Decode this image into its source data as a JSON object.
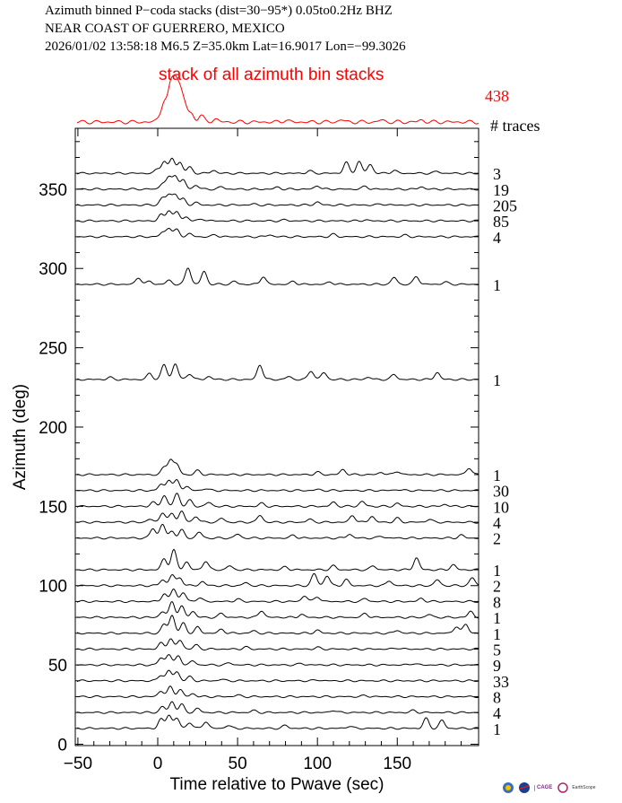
{
  "header": {
    "line1": "Azimuth binned P−coda stacks (dist=30−95*)  0.05to0.2Hz  BHZ",
    "line2": "NEAR COAST OF GUERRERO, MEXICO",
    "line3": "2026/01/02  13:58:18  M6.5  Z=35.0km Lat=16.9017 Lon=−99.3026"
  },
  "summary": {
    "label": "stack of all azimuth bin stacks",
    "count": "438",
    "traces_header": "# traces",
    "color": "#ff0000"
  },
  "chart_data": {
    "type": "line",
    "xlabel": "Time relative to Pwave (sec)",
    "ylabel": "Azimuth (deg)",
    "xlim": [
      -50,
      200
    ],
    "ylim": [
      0,
      390
    ],
    "xticks": [
      -50,
      0,
      50,
      100,
      150
    ],
    "xtick_labels": [
      "−50",
      "0",
      "50",
      "100",
      "150"
    ],
    "yticks": [
      0,
      50,
      100,
      150,
      200,
      250,
      300,
      350
    ],
    "yticks_minor_step": 10,
    "grid": false,
    "summary_trace": {
      "name": "stack of all azimuth bin stacks",
      "count": 438,
      "peaks": [
        [
          1,
          0.1
        ],
        [
          4,
          0.5
        ],
        [
          8,
          0.85
        ],
        [
          11,
          0.95
        ],
        [
          14,
          0.7
        ],
        [
          17,
          0.4
        ],
        [
          21,
          0.2
        ],
        [
          27,
          0.18
        ],
        [
          36,
          0.08
        ],
        [
          80,
          0.05
        ],
        [
          115,
          0.06
        ],
        [
          140,
          0.05
        ],
        [
          165,
          0.05
        ]
      ]
    },
    "series": [
      {
        "azimuth": 360,
        "count": 3,
        "peaks": [
          [
            0,
            0.2
          ],
          [
            4,
            0.6
          ],
          [
            9,
            0.75
          ],
          [
            14,
            0.55
          ],
          [
            20,
            0.3
          ],
          [
            35,
            0.15
          ],
          [
            95,
            0.12
          ],
          [
            118,
            0.55
          ],
          [
            126,
            0.6
          ],
          [
            133,
            0.45
          ],
          [
            148,
            0.15
          ],
          [
            175,
            0.1
          ]
        ]
      },
      {
        "azimuth": 350,
        "count": 19,
        "peaks": [
          [
            3,
            0.3
          ],
          [
            7,
            0.55
          ],
          [
            11,
            0.7
          ],
          [
            16,
            0.45
          ],
          [
            24,
            0.2
          ],
          [
            40,
            0.12
          ],
          [
            75,
            0.1
          ],
          [
            100,
            0.18
          ],
          [
            130,
            0.15
          ],
          [
            165,
            0.12
          ]
        ]
      },
      {
        "azimuth": 340,
        "count": 205,
        "peaks": [
          [
            3,
            0.35
          ],
          [
            7,
            0.5
          ],
          [
            11,
            0.55
          ],
          [
            16,
            0.3
          ],
          [
            24,
            0.12
          ],
          [
            60,
            0.05
          ],
          [
            100,
            0.15
          ],
          [
            140,
            0.06
          ]
        ]
      },
      {
        "azimuth": 330,
        "count": 85,
        "peaks": [
          [
            2,
            0.3
          ],
          [
            7,
            0.55
          ],
          [
            12,
            0.45
          ],
          [
            18,
            0.2
          ],
          [
            28,
            0.1
          ],
          [
            80,
            0.05
          ],
          [
            130,
            0.05
          ]
        ]
      },
      {
        "azimuth": 320,
        "count": 4,
        "peaks": [
          [
            3,
            0.2
          ],
          [
            7,
            0.45
          ],
          [
            12,
            0.35
          ],
          [
            20,
            0.15
          ],
          [
            36,
            0.1
          ],
          [
            70,
            0.1
          ],
          [
            110,
            0.12
          ],
          [
            155,
            0.08
          ]
        ]
      },
      {
        "azimuth": 290,
        "count": 1,
        "peaks": [
          [
            -12,
            0.35
          ],
          [
            -5,
            0.15
          ],
          [
            7,
            0.2
          ],
          [
            19,
            0.85
          ],
          [
            29,
            0.65
          ],
          [
            48,
            0.15
          ],
          [
            66,
            0.4
          ],
          [
            85,
            0.15
          ],
          [
            108,
            0.12
          ],
          [
            148,
            0.35
          ],
          [
            162,
            0.4
          ],
          [
            180,
            0.12
          ]
        ]
      },
      {
        "azimuth": 230,
        "count": 1,
        "peaks": [
          [
            -30,
            0.1
          ],
          [
            -5,
            0.3
          ],
          [
            4,
            0.75
          ],
          [
            11,
            0.8
          ],
          [
            20,
            0.3
          ],
          [
            32,
            0.15
          ],
          [
            64,
            0.75
          ],
          [
            82,
            0.15
          ],
          [
            96,
            0.45
          ],
          [
            104,
            0.35
          ],
          [
            132,
            0.12
          ],
          [
            148,
            0.25
          ],
          [
            175,
            0.35
          ]
        ]
      },
      {
        "azimuth": 170,
        "count": 1,
        "peaks": [
          [
            4,
            0.35
          ],
          [
            8,
            0.75
          ],
          [
            12,
            0.5
          ],
          [
            25,
            0.2
          ],
          [
            100,
            0.12
          ],
          [
            116,
            0.25
          ],
          [
            140,
            0.12
          ],
          [
            150,
            0.18
          ],
          [
            195,
            0.35
          ]
        ]
      },
      {
        "azimuth": 160,
        "count": 30,
        "peaks": [
          [
            2,
            0.3
          ],
          [
            7,
            0.55
          ],
          [
            12,
            0.5
          ],
          [
            18,
            0.2
          ],
          [
            30,
            0.1
          ],
          [
            100,
            0.05
          ],
          [
            150,
            0.05
          ]
        ]
      },
      {
        "azimuth": 150,
        "count": 10,
        "peaks": [
          [
            -3,
            0.2
          ],
          [
            4,
            0.55
          ],
          [
            12,
            0.65
          ],
          [
            20,
            0.3
          ],
          [
            32,
            0.2
          ],
          [
            65,
            0.15
          ],
          [
            110,
            0.2
          ],
          [
            128,
            0.25
          ],
          [
            150,
            0.15
          ],
          [
            180,
            0.1
          ]
        ]
      },
      {
        "azimuth": 140,
        "count": 4,
        "peaks": [
          [
            -5,
            0.15
          ],
          [
            3,
            0.5
          ],
          [
            9,
            0.45
          ],
          [
            15,
            0.55
          ],
          [
            24,
            0.3
          ],
          [
            40,
            0.2
          ],
          [
            64,
            0.35
          ],
          [
            95,
            0.15
          ],
          [
            122,
            0.35
          ],
          [
            134,
            0.3
          ],
          [
            150,
            0.2
          ],
          [
            170,
            0.15
          ]
        ]
      },
      {
        "azimuth": 130,
        "count": 2,
        "peaks": [
          [
            -3,
            0.5
          ],
          [
            3,
            0.7
          ],
          [
            9,
            0.35
          ],
          [
            15,
            0.4
          ],
          [
            26,
            0.3
          ],
          [
            50,
            0.2
          ],
          [
            85,
            0.15
          ],
          [
            120,
            0.2
          ],
          [
            140,
            0.1
          ],
          [
            190,
            0.15
          ]
        ]
      },
      {
        "azimuth": 110,
        "count": 1,
        "peaks": [
          [
            4,
            0.55
          ],
          [
            10,
            1.0
          ],
          [
            18,
            0.4
          ],
          [
            30,
            0.45
          ],
          [
            45,
            0.2
          ],
          [
            80,
            0.15
          ],
          [
            110,
            0.2
          ],
          [
            135,
            0.2
          ],
          [
            162,
            0.6
          ],
          [
            185,
            0.25
          ]
        ]
      },
      {
        "azimuth": 100,
        "count": 2,
        "peaks": [
          [
            3,
            0.3
          ],
          [
            9,
            0.55
          ],
          [
            14,
            0.4
          ],
          [
            28,
            0.2
          ],
          [
            55,
            0.15
          ],
          [
            98,
            0.6
          ],
          [
            106,
            0.5
          ],
          [
            118,
            0.3
          ],
          [
            145,
            0.25
          ],
          [
            175,
            0.3
          ],
          [
            197,
            0.4
          ]
        ]
      },
      {
        "azimuth": 90,
        "count": 8,
        "peaks": [
          [
            4,
            0.4
          ],
          [
            10,
            0.65
          ],
          [
            16,
            0.45
          ],
          [
            26,
            0.2
          ],
          [
            50,
            0.12
          ],
          [
            92,
            0.3
          ],
          [
            100,
            0.25
          ],
          [
            130,
            0.15
          ],
          [
            165,
            0.15
          ]
        ]
      },
      {
        "azimuth": 80,
        "count": 1,
        "peaks": [
          [
            3,
            0.3
          ],
          [
            9,
            0.8
          ],
          [
            15,
            0.55
          ],
          [
            22,
            0.3
          ],
          [
            40,
            0.2
          ],
          [
            65,
            0.35
          ],
          [
            90,
            0.15
          ],
          [
            130,
            0.2
          ],
          [
            170,
            0.15
          ],
          [
            196,
            0.3
          ]
        ]
      },
      {
        "azimuth": 70,
        "count": 1,
        "peaks": [
          [
            4,
            0.45
          ],
          [
            9,
            0.9
          ],
          [
            16,
            0.5
          ],
          [
            25,
            0.3
          ],
          [
            40,
            0.2
          ],
          [
            60,
            0.12
          ],
          [
            100,
            0.15
          ],
          [
            150,
            0.15
          ],
          [
            187,
            0.35
          ],
          [
            193,
            0.45
          ]
        ]
      },
      {
        "azimuth": 60,
        "count": 5,
        "peaks": [
          [
            2,
            0.3
          ],
          [
            8,
            0.55
          ],
          [
            14,
            0.45
          ],
          [
            24,
            0.2
          ],
          [
            55,
            0.1
          ],
          [
            100,
            0.08
          ],
          [
            150,
            0.06
          ]
        ]
      },
      {
        "azimuth": 50,
        "count": 9,
        "peaks": [
          [
            2,
            0.35
          ],
          [
            7,
            0.55
          ],
          [
            13,
            0.45
          ],
          [
            22,
            0.2
          ],
          [
            45,
            0.1
          ],
          [
            90,
            0.08
          ],
          [
            160,
            0.08
          ]
        ]
      },
      {
        "azimuth": 40,
        "count": 33,
        "peaks": [
          [
            2,
            0.3
          ],
          [
            7,
            0.5
          ],
          [
            12,
            0.45
          ],
          [
            20,
            0.2
          ],
          [
            40,
            0.08
          ],
          [
            100,
            0.05
          ]
        ]
      },
      {
        "azimuth": 30,
        "count": 8,
        "peaks": [
          [
            2,
            0.3
          ],
          [
            8,
            0.5
          ],
          [
            14,
            0.35
          ],
          [
            22,
            0.15
          ],
          [
            50,
            0.08
          ],
          [
            130,
            0.06
          ]
        ]
      },
      {
        "azimuth": 20,
        "count": 4,
        "peaks": [
          [
            3,
            0.3
          ],
          [
            9,
            0.55
          ],
          [
            15,
            0.4
          ],
          [
            25,
            0.2
          ],
          [
            60,
            0.1
          ],
          [
            110,
            0.12
          ],
          [
            160,
            0.1
          ]
        ]
      },
      {
        "azimuth": 10,
        "count": 1,
        "peaks": [
          [
            2,
            0.45
          ],
          [
            7,
            0.7
          ],
          [
            12,
            0.5
          ],
          [
            20,
            0.3
          ],
          [
            30,
            0.35
          ],
          [
            44,
            0.15
          ],
          [
            80,
            0.15
          ],
          [
            120,
            0.12
          ],
          [
            168,
            0.5
          ],
          [
            178,
            0.4
          ]
        ]
      }
    ]
  },
  "logos": {
    "cage_line1": "CAGE",
    "cage_line2": "SAGE",
    "earthscope": "EarthScope"
  }
}
